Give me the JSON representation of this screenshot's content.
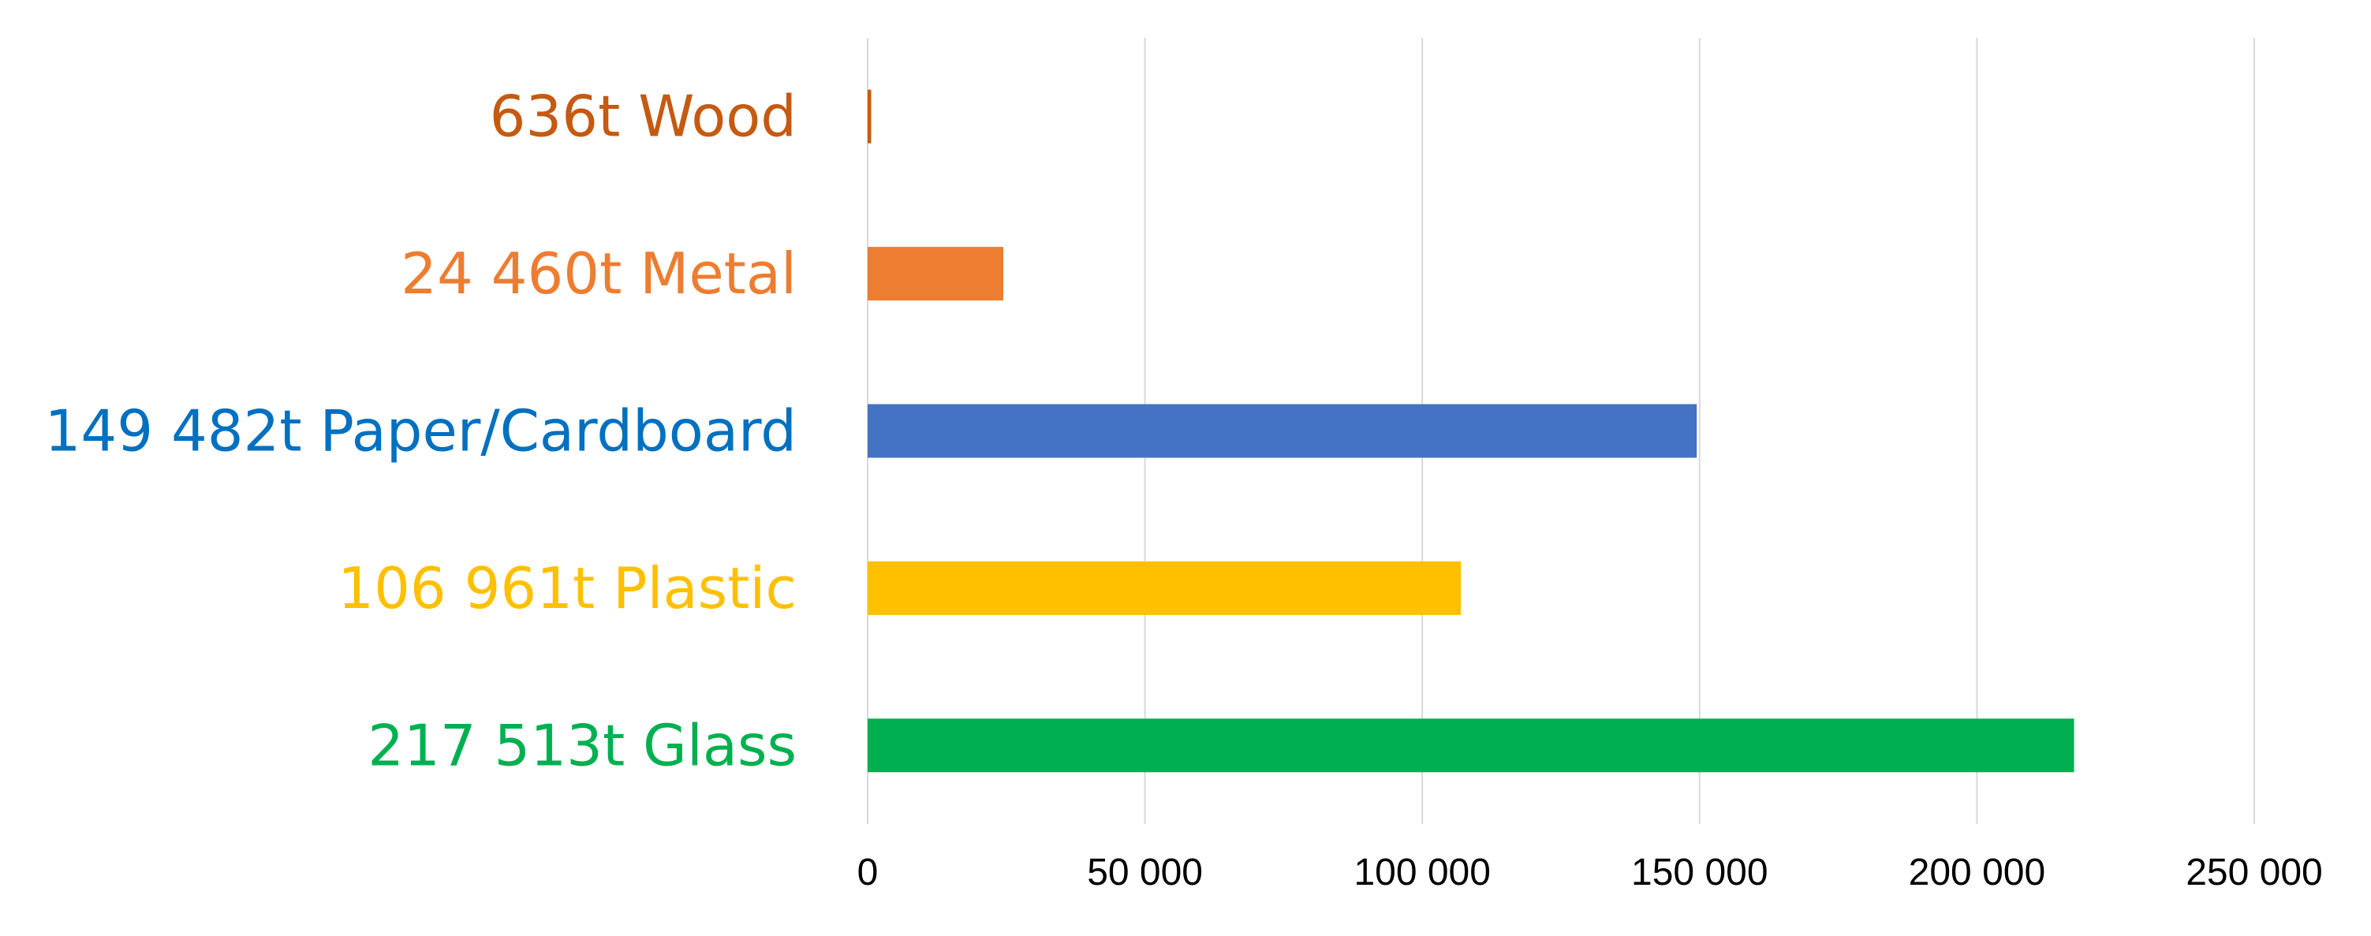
{
  "chart_data": {
    "type": "bar",
    "orientation": "horizontal",
    "title": "",
    "xlabel": "",
    "ylabel": "",
    "xlim": [
      0,
      250000
    ],
    "grid": "vertical",
    "legend": "none",
    "categories": [
      "636t Wood",
      "24 460t Metal",
      "149 482t Paper/Cardboard",
      "106 961t Plastic",
      "217 513t Glass"
    ],
    "values": [
      636,
      24460,
      149482,
      106961,
      217513
    ],
    "colors": [
      "#C55A11",
      "#ED7D31",
      "#4472C4",
      "#FFC000",
      "#00B050"
    ],
    "label_colors": [
      "#C55A11",
      "#ED7D31",
      "#0070C0",
      "#FFC000",
      "#00B050"
    ],
    "ticks": [
      0,
      50000,
      100000,
      150000,
      200000,
      250000
    ],
    "tick_labels": [
      "0",
      "50 000",
      "100 000",
      "150 000",
      "200 000",
      "250 000"
    ]
  }
}
